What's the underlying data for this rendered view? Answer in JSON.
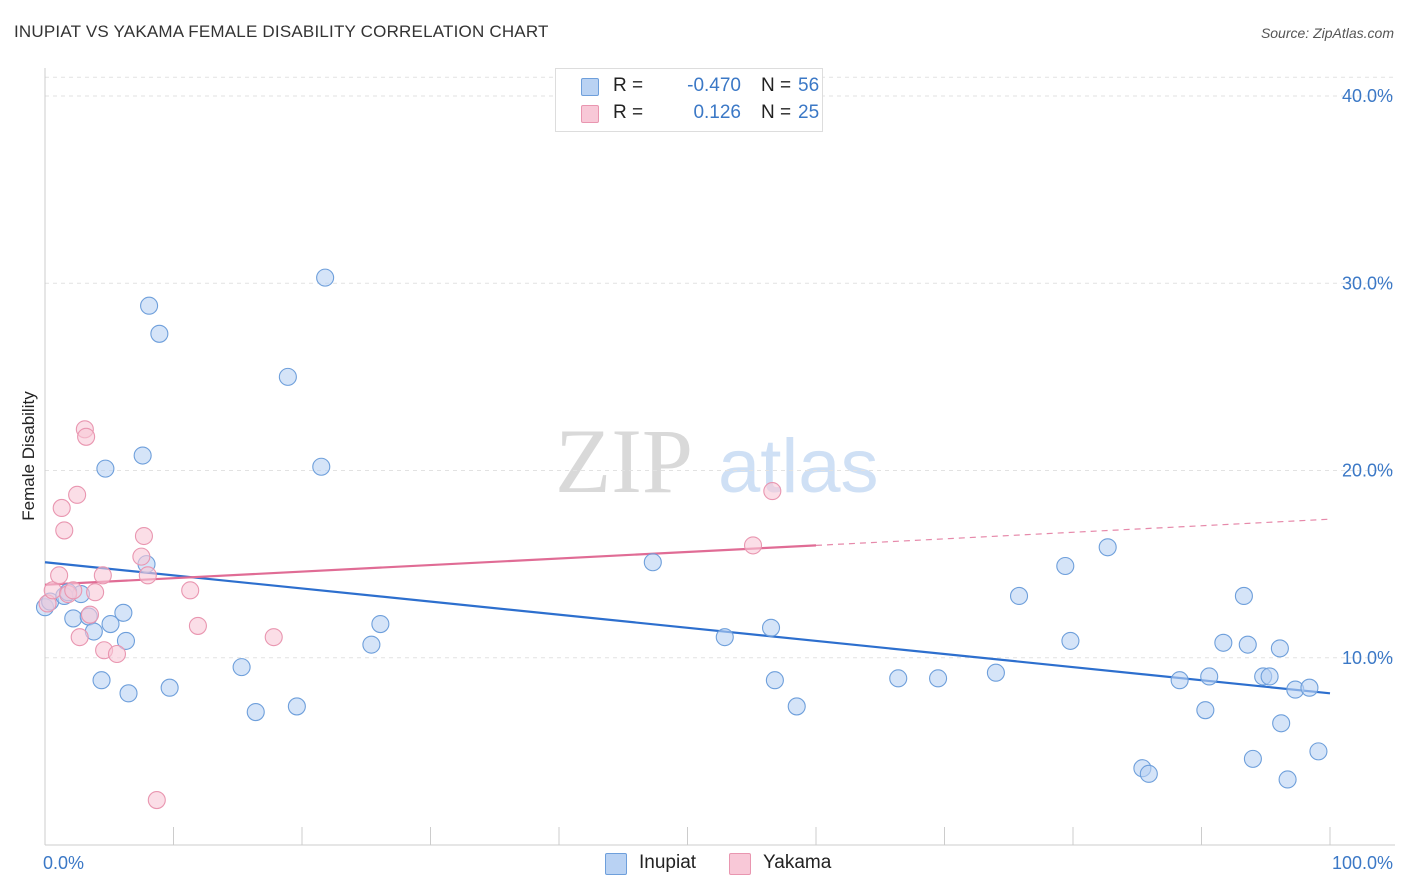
{
  "title": "INUPIAT VS YAKAMA FEMALE DISABILITY CORRELATION CHART",
  "source": "Source: ZipAtlas.com",
  "watermark": {
    "zip": "ZIP",
    "atlas": "atlas"
  },
  "colors": {
    "inupiat_fill": "#b9d2f3",
    "inupiat_stroke": "#6e9fdb",
    "inupiat_line": "#2d6fce",
    "yakama_fill": "#f8c8d7",
    "yakama_stroke": "#e996b0",
    "yakama_line": "#e06c95",
    "tick_label": "#3b78c6",
    "grid": "#e2e2e2"
  },
  "legend": {
    "rows": [
      {
        "series": "Inupiat",
        "r_label": "R =",
        "r_value": "-0.470",
        "n_label": "N =",
        "n_value": "56"
      },
      {
        "series": "Yakama",
        "r_label": "R =",
        "r_value": "0.126",
        "n_label": "N =",
        "n_value": "25"
      }
    ],
    "bottom": [
      "Inupiat",
      "Yakama"
    ]
  },
  "chart_data": {
    "type": "scatter",
    "title": "INUPIAT VS YAKAMA FEMALE DISABILITY CORRELATION CHART",
    "xlabel": "",
    "ylabel": "Female Disability",
    "xlim": [
      0,
      100
    ],
    "ylim": [
      0,
      40
    ],
    "x_tick_labels": [
      {
        "value": 0,
        "label": "0.0%"
      },
      {
        "value": 100,
        "label": "100.0%"
      }
    ],
    "y_tick_labels": [
      {
        "value": 10,
        "label": "10.0%"
      },
      {
        "value": 20,
        "label": "20.0%"
      },
      {
        "value": 30,
        "label": "30.0%"
      },
      {
        "value": 40,
        "label": "40.0%"
      }
    ],
    "y_max_gridline": 41,
    "x_minor_ticks": [
      10,
      20,
      30,
      40,
      50,
      60,
      70,
      80,
      90,
      100
    ],
    "grid": true,
    "legend_position": "top-center",
    "series": [
      {
        "name": "Inupiat",
        "r": -0.47,
        "n": 56,
        "trend": {
          "x0": 0,
          "y0": 15.1,
          "x1": 100,
          "y1": 8.1,
          "solid_until": 100
        },
        "points": [
          [
            0.0,
            12.7
          ],
          [
            0.4,
            13.0
          ],
          [
            1.5,
            13.3
          ],
          [
            2.2,
            12.1
          ],
          [
            2.8,
            13.4
          ],
          [
            3.4,
            12.2
          ],
          [
            3.8,
            11.4
          ],
          [
            4.4,
            8.8
          ],
          [
            4.7,
            20.1
          ],
          [
            5.1,
            11.8
          ],
          [
            6.1,
            12.4
          ],
          [
            6.3,
            10.9
          ],
          [
            6.5,
            8.1
          ],
          [
            7.6,
            20.8
          ],
          [
            7.9,
            15.0
          ],
          [
            8.1,
            28.8
          ],
          [
            8.9,
            27.3
          ],
          [
            9.7,
            8.4
          ],
          [
            15.3,
            9.5
          ],
          [
            16.4,
            7.1
          ],
          [
            18.9,
            25.0
          ],
          [
            19.6,
            7.4
          ],
          [
            21.5,
            20.2
          ],
          [
            21.8,
            30.3
          ],
          [
            25.4,
            10.7
          ],
          [
            26.1,
            11.8
          ],
          [
            47.3,
            15.1
          ],
          [
            52.9,
            11.1
          ],
          [
            56.5,
            11.6
          ],
          [
            56.8,
            8.8
          ],
          [
            58.5,
            7.4
          ],
          [
            66.4,
            8.9
          ],
          [
            69.5,
            8.9
          ],
          [
            74.0,
            9.2
          ],
          [
            75.8,
            13.3
          ],
          [
            79.4,
            14.9
          ],
          [
            79.8,
            10.9
          ],
          [
            82.7,
            15.9
          ],
          [
            85.4,
            4.1
          ],
          [
            85.9,
            3.8
          ],
          [
            88.3,
            8.8
          ],
          [
            90.3,
            7.2
          ],
          [
            90.6,
            9.0
          ],
          [
            91.7,
            10.8
          ],
          [
            93.3,
            13.3
          ],
          [
            93.6,
            10.7
          ],
          [
            94.0,
            4.6
          ],
          [
            94.8,
            9.0
          ],
          [
            95.3,
            9.0
          ],
          [
            96.1,
            10.5
          ],
          [
            96.2,
            6.5
          ],
          [
            96.7,
            3.5
          ],
          [
            97.3,
            8.3
          ],
          [
            98.4,
            8.4
          ],
          [
            99.1,
            5.0
          ],
          [
            1.8,
            13.5
          ]
        ]
      },
      {
        "name": "Yakama",
        "r": 0.126,
        "n": 25,
        "trend": {
          "x0": 0,
          "y0": 13.9,
          "x1": 100,
          "y1": 17.4,
          "solid_until": 60
        },
        "points": [
          [
            0.2,
            12.9
          ],
          [
            0.6,
            13.6
          ],
          [
            1.1,
            14.4
          ],
          [
            1.3,
            18.0
          ],
          [
            1.5,
            16.8
          ],
          [
            1.8,
            13.4
          ],
          [
            2.2,
            13.6
          ],
          [
            2.5,
            18.7
          ],
          [
            2.7,
            11.1
          ],
          [
            3.1,
            22.2
          ],
          [
            3.2,
            21.8
          ],
          [
            3.5,
            12.3
          ],
          [
            4.5,
            14.4
          ],
          [
            4.6,
            10.4
          ],
          [
            5.6,
            10.2
          ],
          [
            7.5,
            15.4
          ],
          [
            7.7,
            16.5
          ],
          [
            8.0,
            14.4
          ],
          [
            8.7,
            2.4
          ],
          [
            11.3,
            13.6
          ],
          [
            11.9,
            11.7
          ],
          [
            17.8,
            11.1
          ],
          [
            55.1,
            16.0
          ],
          [
            56.6,
            18.9
          ],
          [
            3.9,
            13.5
          ]
        ]
      }
    ]
  }
}
